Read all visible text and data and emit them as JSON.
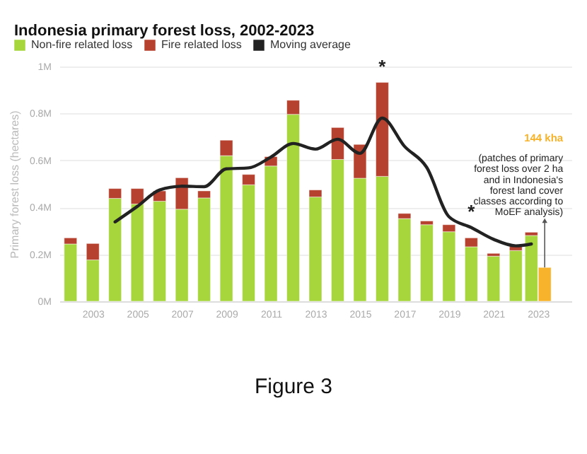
{
  "chart_data": {
    "type": "bar",
    "title": "Indonesia primary forest loss, 2002-2023",
    "ylabel": "Primary forest loss (hectares)",
    "stacked": true,
    "legend": "top left",
    "grid": "y",
    "x": [
      2002,
      2003,
      2004,
      2005,
      2006,
      2007,
      2008,
      2009,
      2010,
      2011,
      2012,
      2013,
      2014,
      2015,
      2016,
      2017,
      2018,
      2019,
      2020,
      2021,
      2022,
      2022.7,
      2023.3
    ],
    "xlim": [
      2001.5,
      2024.5
    ],
    "xticks": [
      2003,
      2005,
      2007,
      2009,
      2011,
      2013,
      2015,
      2017,
      2019,
      2021,
      2023
    ],
    "ylim": [
      0,
      1
    ],
    "yticks": [
      {
        "value": 0,
        "label": "0M"
      },
      {
        "value": 0.2,
        "label": "0.2M"
      },
      {
        "value": 0.4,
        "label": "0.4M"
      },
      {
        "value": 0.6,
        "label": "0.6M"
      },
      {
        "value": 0.8,
        "label": "0.8M"
      },
      {
        "value": 1,
        "label": "1M"
      }
    ],
    "series": [
      {
        "name": "Non-fire related loss",
        "color": "#a6d63b",
        "values": [
          0.244,
          0.176,
          0.438,
          0.414,
          0.426,
          0.392,
          0.44,
          0.62,
          0.496,
          0.576,
          0.796,
          0.444,
          0.604,
          0.524,
          0.532,
          0.352,
          0.326,
          0.296,
          0.232,
          0.192,
          0.216,
          0.28,
          null
        ]
      },
      {
        "name": "Fire related loss",
        "color": "#b5412e",
        "values": [
          0.026,
          0.07,
          0.042,
          0.066,
          0.044,
          0.134,
          0.03,
          0.066,
          0.044,
          0.04,
          0.06,
          0.03,
          0.136,
          0.144,
          0.4,
          0.022,
          0.016,
          0.03,
          0.038,
          0.012,
          0.018,
          0.014,
          null
        ]
      },
      {
        "color": "#f7b32b",
        "values": [
          null,
          null,
          null,
          null,
          null,
          null,
          null,
          null,
          null,
          null,
          null,
          null,
          null,
          null,
          null,
          null,
          null,
          null,
          null,
          null,
          null,
          null,
          0.144
        ]
      },
      {
        "name": "Moving average",
        "type": "line",
        "color": "#222222",
        "values": [
          null,
          null,
          0.338,
          0.404,
          0.474,
          0.49,
          0.488,
          0.564,
          0.568,
          0.614,
          0.672,
          0.648,
          0.69,
          0.63,
          0.78,
          0.66,
          0.57,
          0.36,
          0.314,
          0.264,
          0.236,
          0.244,
          null
        ]
      }
    ],
    "annotations": [
      {
        "text": "*",
        "x": 2016,
        "y": 0.932
      },
      {
        "text": "*",
        "x": 2020,
        "y": 0.314
      },
      "144 kha",
      "(patches of primary\nforest loss over 2 ha\nand in Indonesia's\nforest land cover\nclasses according to\nMoEF analysis)",
      "Figure 3"
    ]
  }
}
